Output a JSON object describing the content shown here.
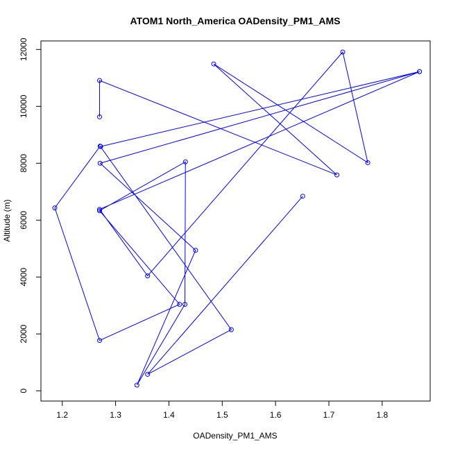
{
  "chart_data": {
    "type": "line",
    "title": "ATOM1 North_America OADensity_PM1_AMS",
    "xlabel": "OADensity_PM1_AMS",
    "ylabel": "Altitude (m)",
    "xlim": [
      1.16,
      1.89
    ],
    "ylim": [
      -360,
      12300
    ],
    "x_ticks": [
      1.2,
      1.3,
      1.4,
      1.5,
      1.6,
      1.7,
      1.8
    ],
    "y_ticks": [
      0,
      2000,
      4000,
      6000,
      8000,
      10000,
      12000
    ],
    "x_tick_labels": [
      "1.2",
      "1.3",
      "1.4",
      "1.5",
      "1.6",
      "1.7",
      "1.8"
    ],
    "y_tick_labels": [
      "0",
      "2000",
      "4000",
      "6000",
      "8000",
      "10000",
      "12000"
    ],
    "grid": false,
    "legend": "none",
    "color": "#0000ff",
    "markers": "open-circle",
    "series": [
      {
        "x": [
          1.651,
          1.36,
          1.517,
          1.271,
          1.186,
          1.27,
          1.42,
          1.27,
          1.431,
          1.43,
          1.34,
          1.45,
          1.271,
          1.87,
          1.272,
          1.87,
          1.27,
          1.36,
          1.726,
          1.773,
          1.484,
          1.715,
          1.27,
          1.27
        ],
        "y": [
          6840,
          580,
          2150,
          8600,
          6430,
          1770,
          3040,
          6330,
          8050,
          3040,
          200,
          4940,
          8000,
          11220,
          8590,
          11220,
          6380,
          4040,
          11910,
          8020,
          11490,
          7590,
          10910,
          9630
        ]
      }
    ]
  }
}
